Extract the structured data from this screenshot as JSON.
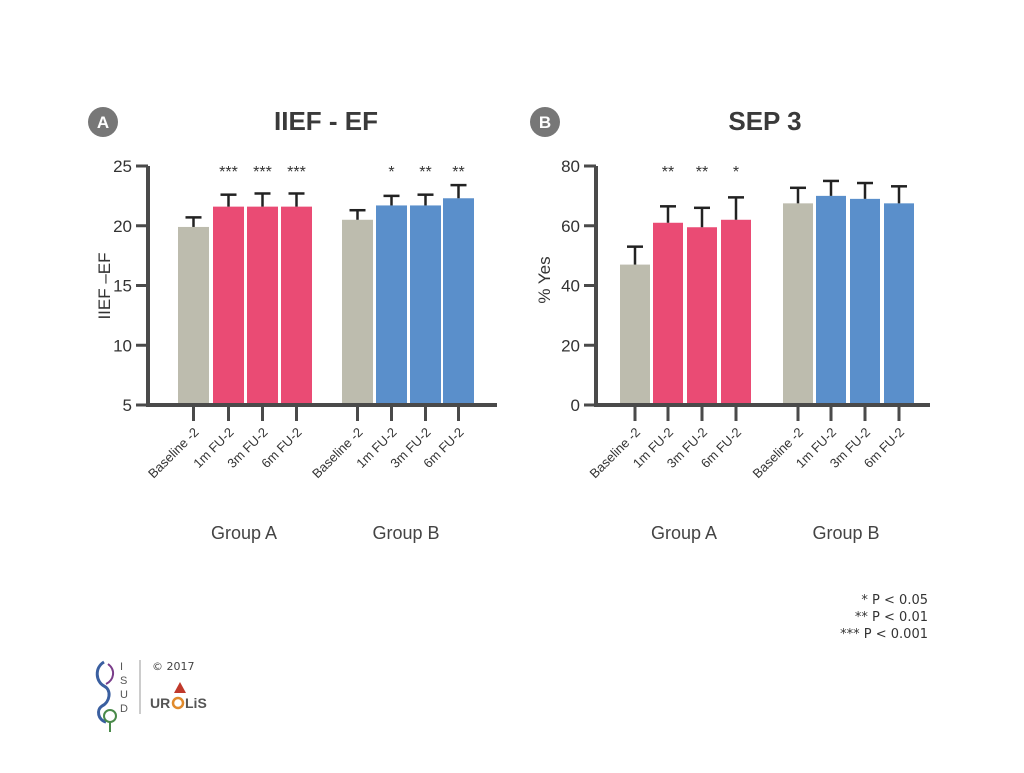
{
  "colors": {
    "baseline": "#bdbcae",
    "group_a": "#ea4b74",
    "group_b": "#5a8fcb",
    "axis": "#4a4a4a",
    "panel_badge": "#777777",
    "text": "#333333"
  },
  "chart_data": [
    {
      "type": "bar",
      "panel": "A",
      "title": "IIEF - EF",
      "ylabel": "IIEF –EF",
      "xlabel": "",
      "ylim": [
        5,
        25
      ],
      "yticks": [
        5,
        10,
        15,
        20,
        25
      ],
      "categories": [
        "Baseline -2",
        "1m FU-2",
        "3m FU-2",
        "6m FU-2",
        "Baseline -2",
        "1m FU-2",
        "3m FU-2",
        "6m FU-2"
      ],
      "groups": [
        "Group A",
        "Group B"
      ],
      "values": [
        19.9,
        21.6,
        21.6,
        21.6,
        20.5,
        21.7,
        21.7,
        22.3
      ],
      "errors": [
        0.8,
        1.0,
        1.1,
        1.1,
        0.8,
        0.8,
        0.9,
        1.1
      ],
      "significance": [
        "",
        "***",
        "***",
        "***",
        "",
        "*",
        "**",
        "**"
      ],
      "bar_colors": [
        "baseline",
        "group_a",
        "group_a",
        "group_a",
        "baseline",
        "group_b",
        "group_b",
        "group_b"
      ],
      "grid": false,
      "legend": "none"
    },
    {
      "type": "bar",
      "panel": "B",
      "title": "SEP 3",
      "ylabel": "% Yes",
      "xlabel": "",
      "ylim": [
        0,
        80
      ],
      "yticks": [
        0,
        20,
        40,
        60,
        80
      ],
      "categories": [
        "Baseline -2",
        "1m FU-2",
        "3m FU-2",
        "6m FU-2",
        "Baseline -2",
        "1m FU-2",
        "3m FU-2",
        "6m FU-2"
      ],
      "groups": [
        "Group A",
        "Group B"
      ],
      "values": [
        47,
        61,
        59.5,
        62,
        67.5,
        70,
        69,
        67.5
      ],
      "errors": [
        6,
        5.5,
        6.5,
        7.5,
        5.2,
        5,
        5.3,
        5.7
      ],
      "significance": [
        "",
        "**",
        "**",
        "*",
        "",
        "",
        "",
        ""
      ],
      "bar_colors": [
        "baseline",
        "group_a",
        "group_a",
        "group_a",
        "baseline",
        "group_b",
        "group_b",
        "group_b"
      ],
      "grid": false,
      "legend": "none"
    }
  ],
  "legend_lines": [
    "* P < 0.05",
    "** P < 0.01",
    "*** P < 0.001"
  ],
  "footer": {
    "copyright": "© 2017",
    "logo_left_letters": "ISUD",
    "logo_right_text": "UROLiS"
  }
}
